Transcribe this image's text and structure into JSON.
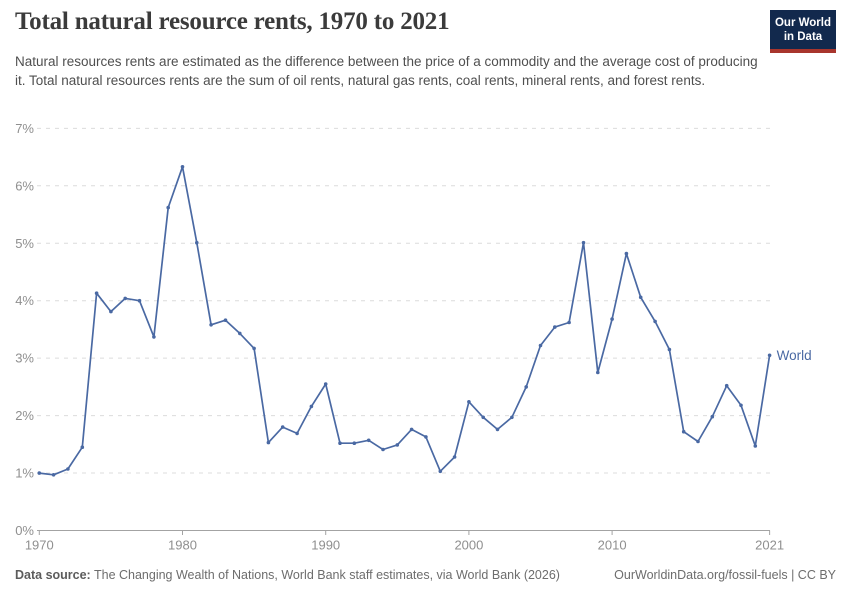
{
  "header": {
    "title": "Total natural resource rents, 1970 to 2021",
    "subtitle": "Natural resources rents are estimated as the difference between the price of a commodity and the average cost of producing it. Total natural resources rents are the sum of oil rents, natural gas rents, coal rents, mineral rents, and forest rents.",
    "logo": {
      "line1": "Our World",
      "line2": "in Data",
      "bg_color": "#12294d",
      "accent_color": "#a8352d"
    }
  },
  "chart_data": {
    "type": "line",
    "title": "Total natural resource rents, 1970 to 2021",
    "xlabel": "",
    "ylabel": "",
    "xlim": [
      1970,
      2021
    ],
    "ylim": [
      0,
      7
    ],
    "grid": "horizontal-dashed",
    "legend_position": "end-of-line-label",
    "x_ticks": [
      1970,
      1980,
      1990,
      2000,
      2010,
      2021
    ],
    "y_tick_values": [
      0,
      1,
      2,
      3,
      4,
      5,
      6,
      7
    ],
    "y_tick_labels": [
      "0%",
      "1%",
      "2%",
      "3%",
      "4%",
      "5%",
      "6%",
      "7%"
    ],
    "series": [
      {
        "name": "World",
        "color": "#4a69a3",
        "years": [
          1970,
          1971,
          1972,
          1973,
          1974,
          1975,
          1976,
          1977,
          1978,
          1979,
          1980,
          1981,
          1982,
          1983,
          1984,
          1985,
          1986,
          1987,
          1988,
          1989,
          1990,
          1991,
          1992,
          1993,
          1994,
          1995,
          1996,
          1997,
          1998,
          1999,
          2000,
          2001,
          2002,
          2003,
          2004,
          2005,
          2006,
          2007,
          2008,
          2009,
          2010,
          2011,
          2012,
          2013,
          2014,
          2015,
          2016,
          2017,
          2018,
          2019,
          2020,
          2021
        ],
        "values": [
          1.0,
          0.97,
          1.07,
          1.45,
          4.13,
          3.81,
          4.04,
          4.0,
          3.37,
          5.62,
          6.33,
          5.01,
          3.58,
          3.66,
          3.43,
          3.17,
          1.53,
          1.8,
          1.69,
          2.16,
          2.55,
          1.52,
          1.52,
          1.57,
          1.41,
          1.49,
          1.76,
          1.63,
          1.03,
          1.28,
          2.24,
          1.97,
          1.76,
          1.97,
          2.5,
          3.22,
          3.54,
          3.62,
          5.01,
          2.75,
          3.68,
          4.82,
          4.06,
          3.64,
          3.15,
          1.72,
          1.55,
          1.98,
          2.52,
          2.18,
          1.47,
          3.05
        ]
      }
    ]
  },
  "colors": {
    "line": "#4a69a3",
    "grid": "#dcdcdc",
    "axis": "#a3a3a3",
    "tick_label": "#8f8f8f",
    "title": "#3b3b3b",
    "subtitle": "#4f4f4f",
    "footer": "#6d6d6d"
  },
  "footer": {
    "source_label": "Data source:",
    "source_text": " The Changing Wealth of Nations, World Bank staff estimates, via World Bank (2026)",
    "right_text": "OurWorldinData.org/fossil-fuels | CC BY"
  }
}
